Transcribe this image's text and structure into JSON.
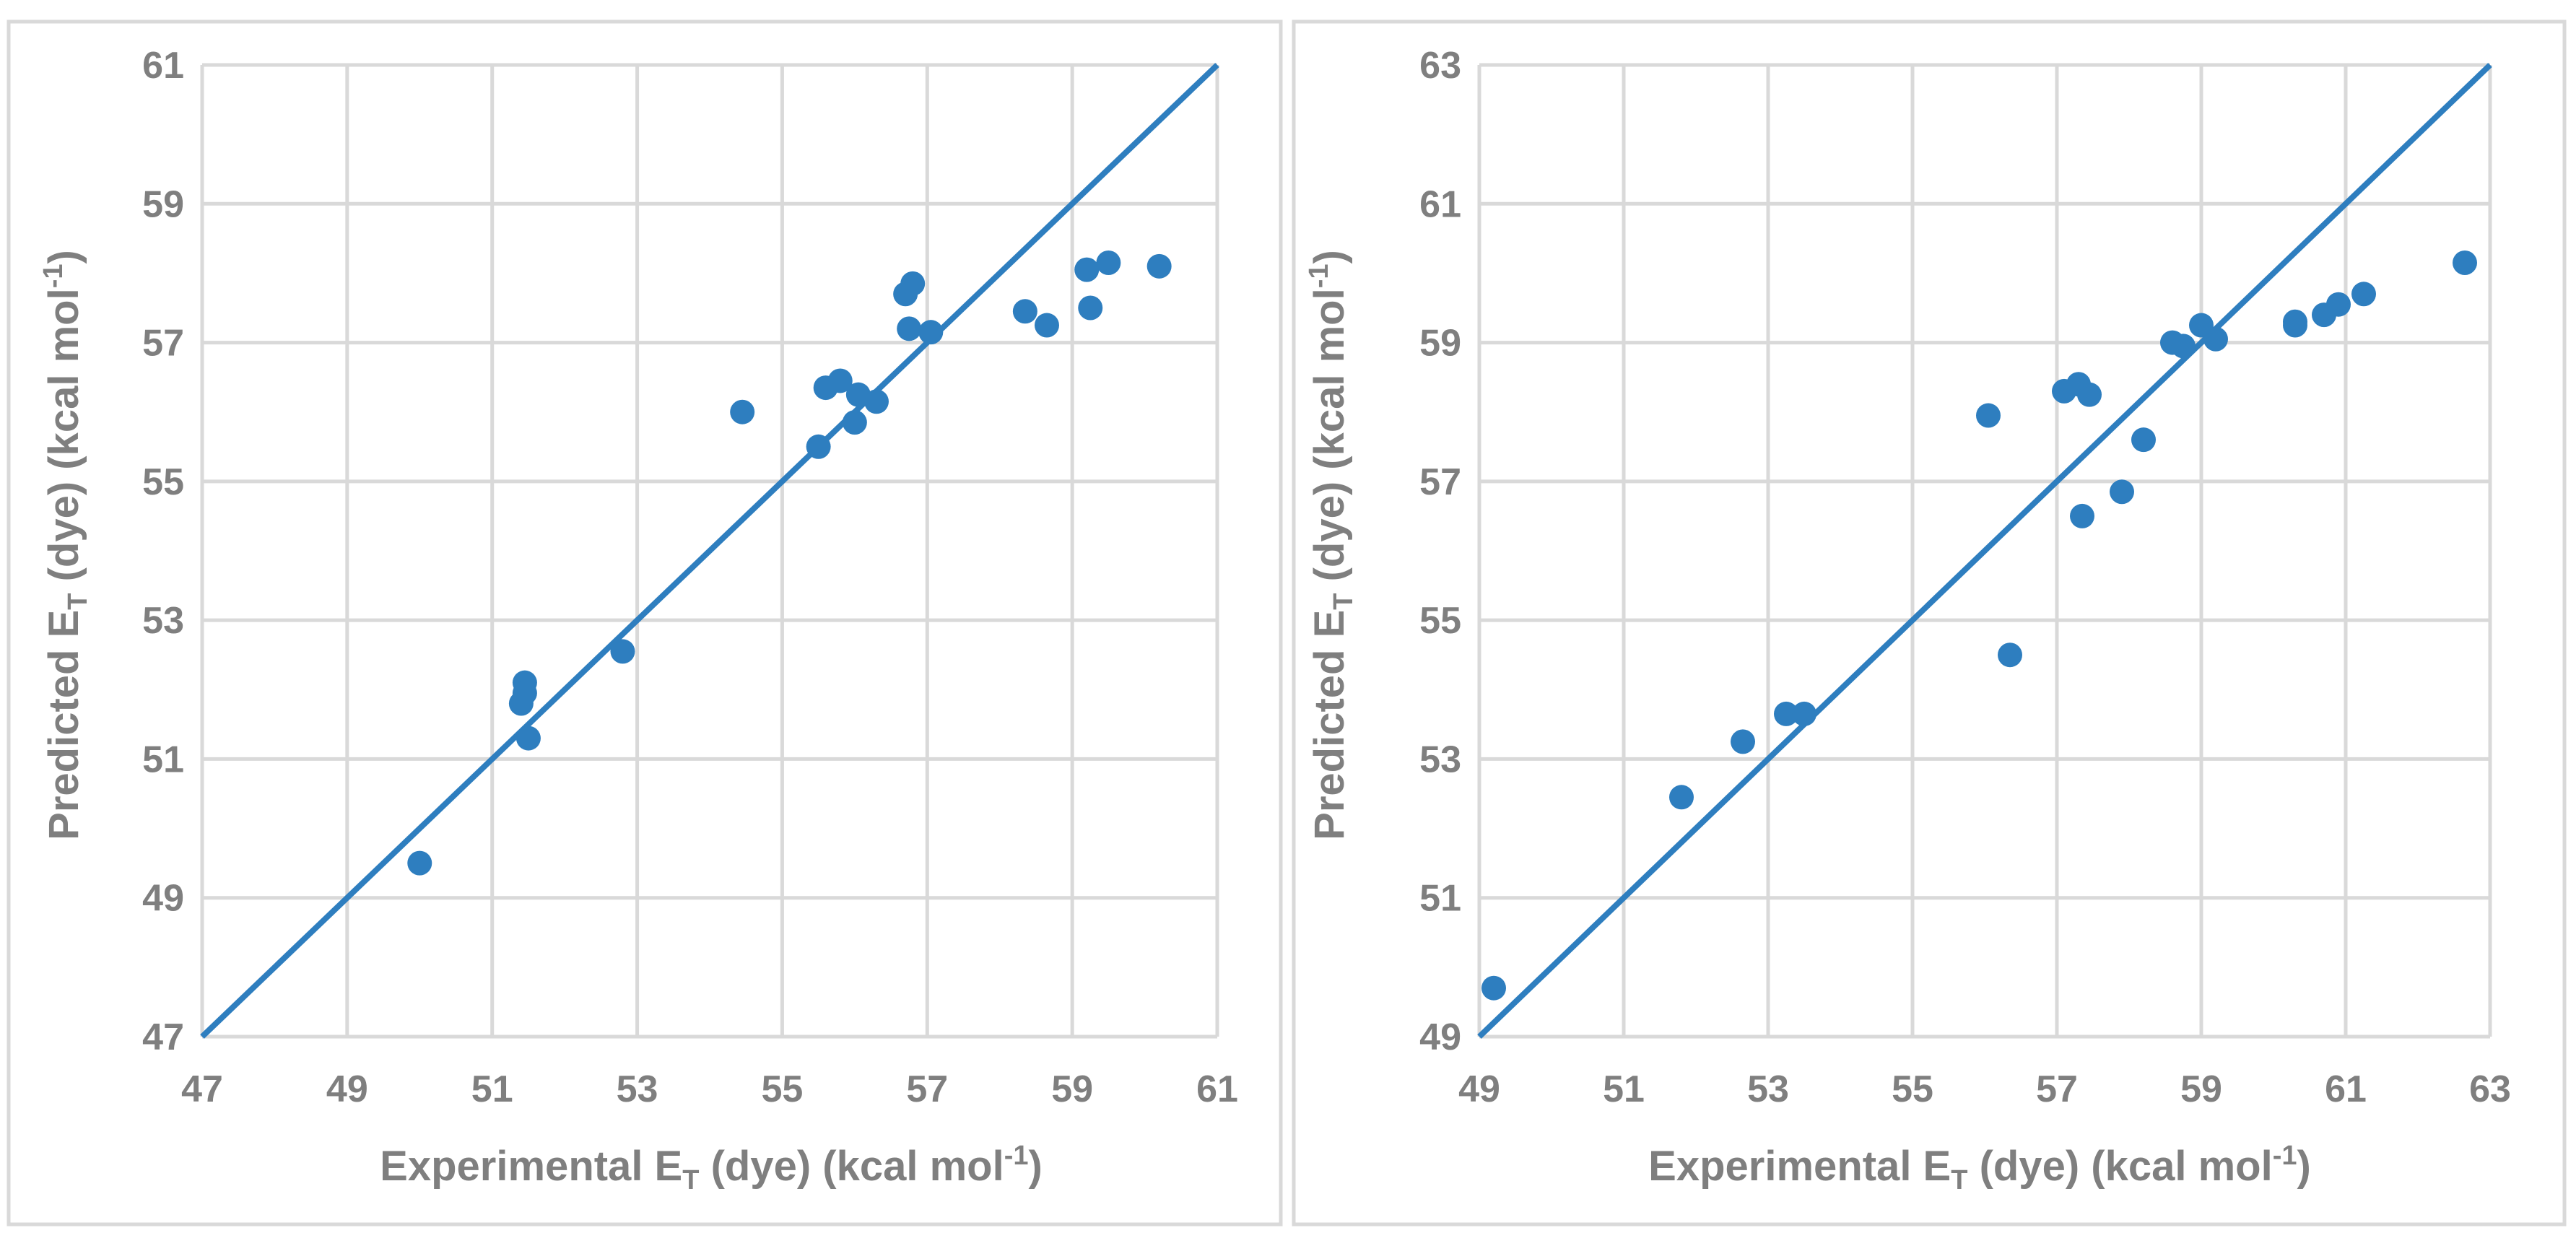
{
  "chart_data": [
    {
      "type": "scatter",
      "title": "",
      "xlabel": {
        "main": "Experimental E",
        "sub": "T",
        "rest": " (dye) (kcal mol",
        "sup": "-1",
        "end": ")"
      },
      "ylabel": {
        "main": "Predicted E",
        "sub": "T",
        "rest": " (dye) (kcal mol",
        "sup": "-1",
        "end": ")"
      },
      "xlim": [
        47,
        61
      ],
      "ylim": [
        47,
        61
      ],
      "xticks": [
        "47",
        "49",
        "51",
        "53",
        "55",
        "57",
        "59",
        "61"
      ],
      "yticks": [
        "47",
        "49",
        "51",
        "53",
        "55",
        "57",
        "59",
        "61"
      ],
      "grid": true,
      "identity_line": true,
      "series": [
        {
          "name": "dyes",
          "color": "#2e7ebf",
          "points": [
            [
              50.0,
              49.5
            ],
            [
              51.45,
              52.1
            ],
            [
              51.45,
              51.95
            ],
            [
              51.4,
              51.8
            ],
            [
              51.5,
              51.3
            ],
            [
              52.8,
              52.55
            ],
            [
              54.45,
              56.0
            ],
            [
              55.5,
              55.5
            ],
            [
              55.6,
              56.35
            ],
            [
              55.8,
              56.45
            ],
            [
              56.0,
              55.85
            ],
            [
              56.05,
              56.25
            ],
            [
              56.3,
              56.15
            ],
            [
              56.7,
              57.7
            ],
            [
              56.8,
              57.85
            ],
            [
              56.75,
              57.2
            ],
            [
              57.05,
              57.15
            ],
            [
              58.35,
              57.45
            ],
            [
              58.65,
              57.25
            ],
            [
              59.2,
              58.05
            ],
            [
              59.25,
              57.5
            ],
            [
              59.5,
              58.15
            ],
            [
              60.2,
              58.1
            ]
          ]
        }
      ]
    },
    {
      "type": "scatter",
      "title": "",
      "xlabel": {
        "main": "Experimental E",
        "sub": "T",
        "rest": " (dye) (kcal mol",
        "sup": "-1",
        "end": ")"
      },
      "ylabel": {
        "main": "Predicted E",
        "sub": "T",
        "rest": " (dye)  (kcal mol",
        "sup": "-1",
        "end": ")"
      },
      "xlim": [
        49,
        63
      ],
      "ylim": [
        49,
        63
      ],
      "xticks": [
        "49",
        "51",
        "53",
        "55",
        "57",
        "59",
        "61",
        "63"
      ],
      "yticks": [
        "49",
        "51",
        "53",
        "55",
        "57",
        "59",
        "61",
        "63"
      ],
      "grid": true,
      "identity_line": true,
      "series": [
        {
          "name": "dyes",
          "color": "#2e7ebf",
          "points": [
            [
              49.2,
              49.7
            ],
            [
              51.8,
              52.45
            ],
            [
              52.65,
              53.25
            ],
            [
              53.25,
              53.65
            ],
            [
              53.5,
              53.65
            ],
            [
              56.35,
              54.5
            ],
            [
              56.05,
              57.95
            ],
            [
              57.1,
              58.3
            ],
            [
              57.3,
              58.4
            ],
            [
              57.45,
              58.25
            ],
            [
              57.35,
              56.5
            ],
            [
              57.9,
              56.85
            ],
            [
              58.2,
              57.6
            ],
            [
              58.6,
              59.0
            ],
            [
              58.75,
              58.95
            ],
            [
              59.0,
              59.25
            ],
            [
              59.2,
              59.05
            ],
            [
              60.3,
              59.3
            ],
            [
              60.3,
              59.25
            ],
            [
              60.7,
              59.4
            ],
            [
              60.9,
              59.55
            ],
            [
              61.25,
              59.7
            ],
            [
              62.65,
              60.15
            ]
          ]
        }
      ]
    }
  ]
}
